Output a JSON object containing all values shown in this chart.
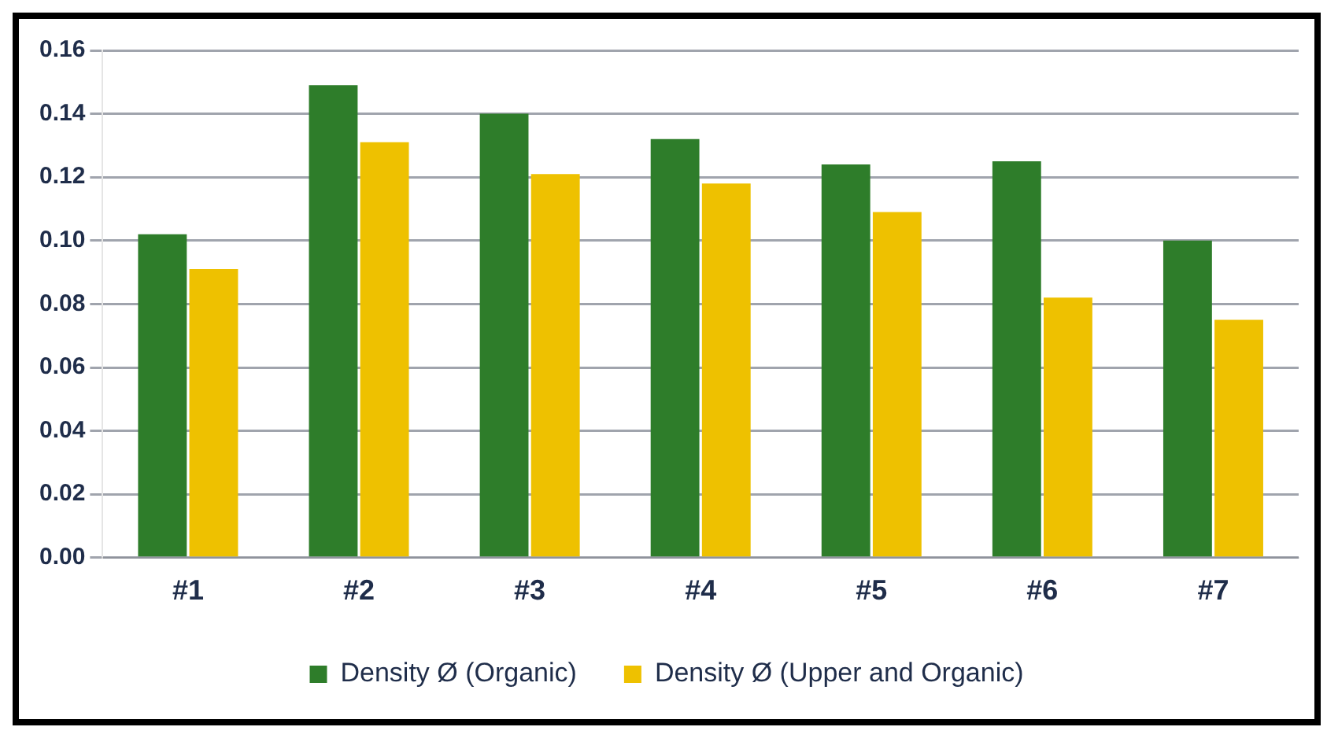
{
  "chart_data": {
    "type": "bar",
    "categories": [
      "#1",
      "#2",
      "#3",
      "#4",
      "#5",
      "#6",
      "#7"
    ],
    "series": [
      {
        "name": "Density Ø (Organic)",
        "color": "#2e7d2a",
        "values": [
          0.102,
          0.149,
          0.14,
          0.132,
          0.124,
          0.125,
          0.1
        ]
      },
      {
        "name": "Density Ø (Upper and Organic)",
        "color": "#eec100",
        "values": [
          0.091,
          0.131,
          0.121,
          0.118,
          0.109,
          0.082,
          0.075
        ]
      }
    ],
    "ylim": [
      0,
      0.16
    ],
    "yticks": [
      {
        "value": 0,
        "label": "0.00"
      },
      {
        "value": 0.02,
        "label": "0.02"
      },
      {
        "value": 0.04,
        "label": "0.04"
      },
      {
        "value": 0.06,
        "label": "0.06"
      },
      {
        "value": 0.08,
        "label": "0.08"
      },
      {
        "value": 0.1,
        "label": "0.10"
      },
      {
        "value": 0.12,
        "label": "0.12"
      },
      {
        "value": 0.14,
        "label": "0.14"
      },
      {
        "value": 0.16,
        "label": "0.16"
      }
    ],
    "grid": "y",
    "legend": "bottom"
  }
}
